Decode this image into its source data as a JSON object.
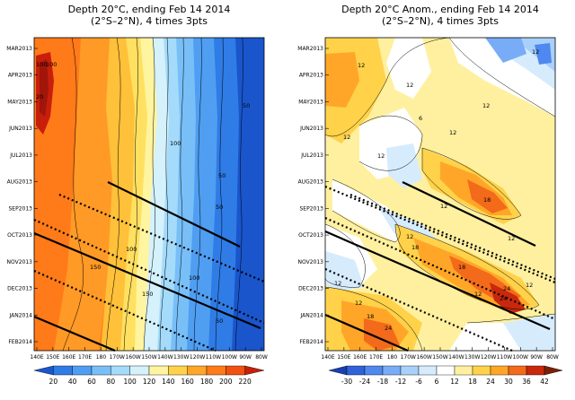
{
  "chart_data": [
    {
      "type": "heatmap",
      "title_line1": "Depth 20°C, ending Feb 14 2014",
      "title_line2": "(2°S–2°N), 4 times 3pts",
      "x_ticks": [
        "140E",
        "150E",
        "160E",
        "170E",
        "180",
        "170W",
        "160W",
        "150W",
        "140W",
        "130W",
        "120W",
        "110W",
        "100W",
        "90W",
        "80W"
      ],
      "y_ticks": [
        "MAR2013",
        "APR2013",
        "MAY2013",
        "JUN2013",
        "JUL2013",
        "AUG2013",
        "SEP2013",
        "OCT2013",
        "NOV2013",
        "DEC2013",
        "JAN2014",
        "FEB2014"
      ],
      "colorbar_levels": [
        "20",
        "40",
        "60",
        "80",
        "100",
        "120",
        "140",
        "160",
        "180",
        "200",
        "220"
      ],
      "colorbar_colors": [
        "#1a55cc",
        "#2f7ce6",
        "#4f9ef2",
        "#78bff8",
        "#a4dbfb",
        "#d4f1fc",
        "#fff4a0",
        "#ffd24a",
        "#ffa628",
        "#ff7a18",
        "#f25010",
        "#c81e0c"
      ],
      "contour_labels": [
        "100",
        "100",
        "150",
        "50",
        "50",
        "50",
        "100",
        "50",
        "150",
        "100",
        "100",
        "20"
      ],
      "kelvin_wave_lines": {
        "solid": 3,
        "dotted": 3
      }
    },
    {
      "type": "heatmap",
      "title_line1": "Depth 20°C Anom., ending Feb 14 2014",
      "title_line2": "(2°S–2°N), 4 times 3pts",
      "x_ticks": [
        "140E",
        "150E",
        "160E",
        "170E",
        "180",
        "170W",
        "160W",
        "150W",
        "140W",
        "130W",
        "120W",
        "110W",
        "100W",
        "90W",
        "80W"
      ],
      "y_ticks": [
        "MAR2013",
        "APR2013",
        "MAY2013",
        "JUN2013",
        "JUL2013",
        "AUG2013",
        "SEP2013",
        "OCT2013",
        "NOV2013",
        "DEC2013",
        "JAN2014",
        "FEB2014"
      ],
      "colorbar_levels": [
        "-30",
        "-24",
        "-18",
        "-12",
        "-6",
        "6",
        "12",
        "18",
        "24",
        "30",
        "36",
        "42"
      ],
      "colorbar_colors": [
        "#1a3fb3",
        "#2f62d9",
        "#4f88ee",
        "#78acf6",
        "#a8d0fb",
        "#d6ecfd",
        "#ffffff",
        "#fff0a0",
        "#ffd24a",
        "#ffa628",
        "#f26a1a",
        "#c8280c",
        "#7a2008"
      ],
      "contour_labels": [
        "12",
        "12",
        "12",
        "6",
        "12",
        "12",
        "12",
        "12",
        "18",
        "12",
        "12",
        "18",
        "24",
        "18",
        "12",
        "24",
        "12",
        "18",
        "12",
        "12",
        "24",
        "12"
      ],
      "kelvin_wave_lines": {
        "solid": 3,
        "dotted": 4
      }
    }
  ]
}
